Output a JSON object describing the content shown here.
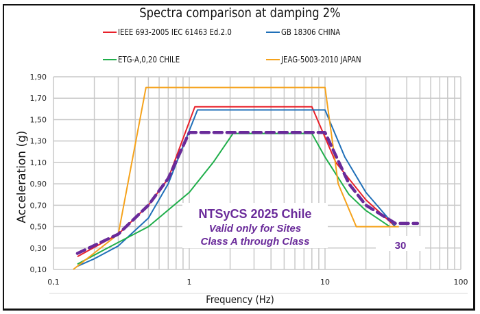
{
  "chart_data": {
    "type": "line",
    "title": "Spectra comparison at damping 2%",
    "xlabel": "Frequency (Hz)",
    "ylabel": "Acceleration (g)",
    "xscale": "log",
    "xlim": [
      0.1,
      100
    ],
    "ylim": [
      0.1,
      1.9
    ],
    "xticks": [
      0.1,
      1,
      10,
      100
    ],
    "xtick_labels": [
      "0,1",
      "1",
      "10",
      "100"
    ],
    "yticks": [
      0.1,
      0.3,
      0.5,
      0.7,
      0.9,
      1.1,
      1.3,
      1.5,
      1.7,
      1.9
    ],
    "ytick_labels": [
      "0,10",
      "0,30",
      "0,50",
      "0,70",
      "0,90",
      "1,10",
      "1,30",
      "1,50",
      "1,70",
      "1,90"
    ],
    "grid": true,
    "legend_position": "top",
    "series": [
      {
        "name": "IEEE 693-2005 IEC 61463 Ed.2.0",
        "color": "#e8202a",
        "dashed": false,
        "x": [
          0.15,
          0.3,
          0.5,
          0.7,
          1.1,
          8,
          12,
          20,
          33
        ],
        "y": [
          0.22,
          0.43,
          0.7,
          0.95,
          1.62,
          1.62,
          1.1,
          0.75,
          0.5
        ]
      },
      {
        "name": "GB 18306 CHINA",
        "color": "#1f6fb8",
        "dashed": false,
        "x": [
          0.15,
          0.2,
          0.3,
          0.5,
          0.7,
          0.9,
          1.15,
          10,
          14,
          20,
          33
        ],
        "y": [
          0.13,
          0.2,
          0.32,
          0.58,
          0.9,
          1.25,
          1.59,
          1.59,
          1.15,
          0.82,
          0.5
        ]
      },
      {
        "name": "ETG-A,0,20 CHILE",
        "color": "#1fae4a",
        "dashed": false,
        "x": [
          0.15,
          0.25,
          0.5,
          1,
          1.5,
          2.1,
          8,
          10,
          15,
          20,
          30
        ],
        "y": [
          0.15,
          0.3,
          0.5,
          0.82,
          1.1,
          1.37,
          1.37,
          1.15,
          0.8,
          0.65,
          0.5
        ]
      },
      {
        "name": "JEAG-5003-2010 JAPAN",
        "color": "#f5a21b",
        "dashed": false,
        "x": [
          0.14,
          0.3,
          0.48,
          10,
          12.5,
          17,
          35
        ],
        "y": [
          0.1,
          0.43,
          1.8,
          1.8,
          0.9,
          0.5,
          0.5
        ]
      },
      {
        "name": "NTSyCS 2025 Chile",
        "color": "#6a2b9a",
        "dashed": true,
        "x": [
          0.15,
          0.3,
          0.5,
          0.7,
          1.0,
          10,
          15,
          20,
          33,
          48
        ],
        "y": [
          0.25,
          0.43,
          0.7,
          0.95,
          1.38,
          1.38,
          0.9,
          0.7,
          0.53,
          0.53
        ]
      }
    ],
    "annotations": {
      "line1": "NTSyCS 2025 Chile",
      "line2": "Valid only for Sites",
      "line3": "Class A through Class",
      "right_label": "30"
    }
  }
}
